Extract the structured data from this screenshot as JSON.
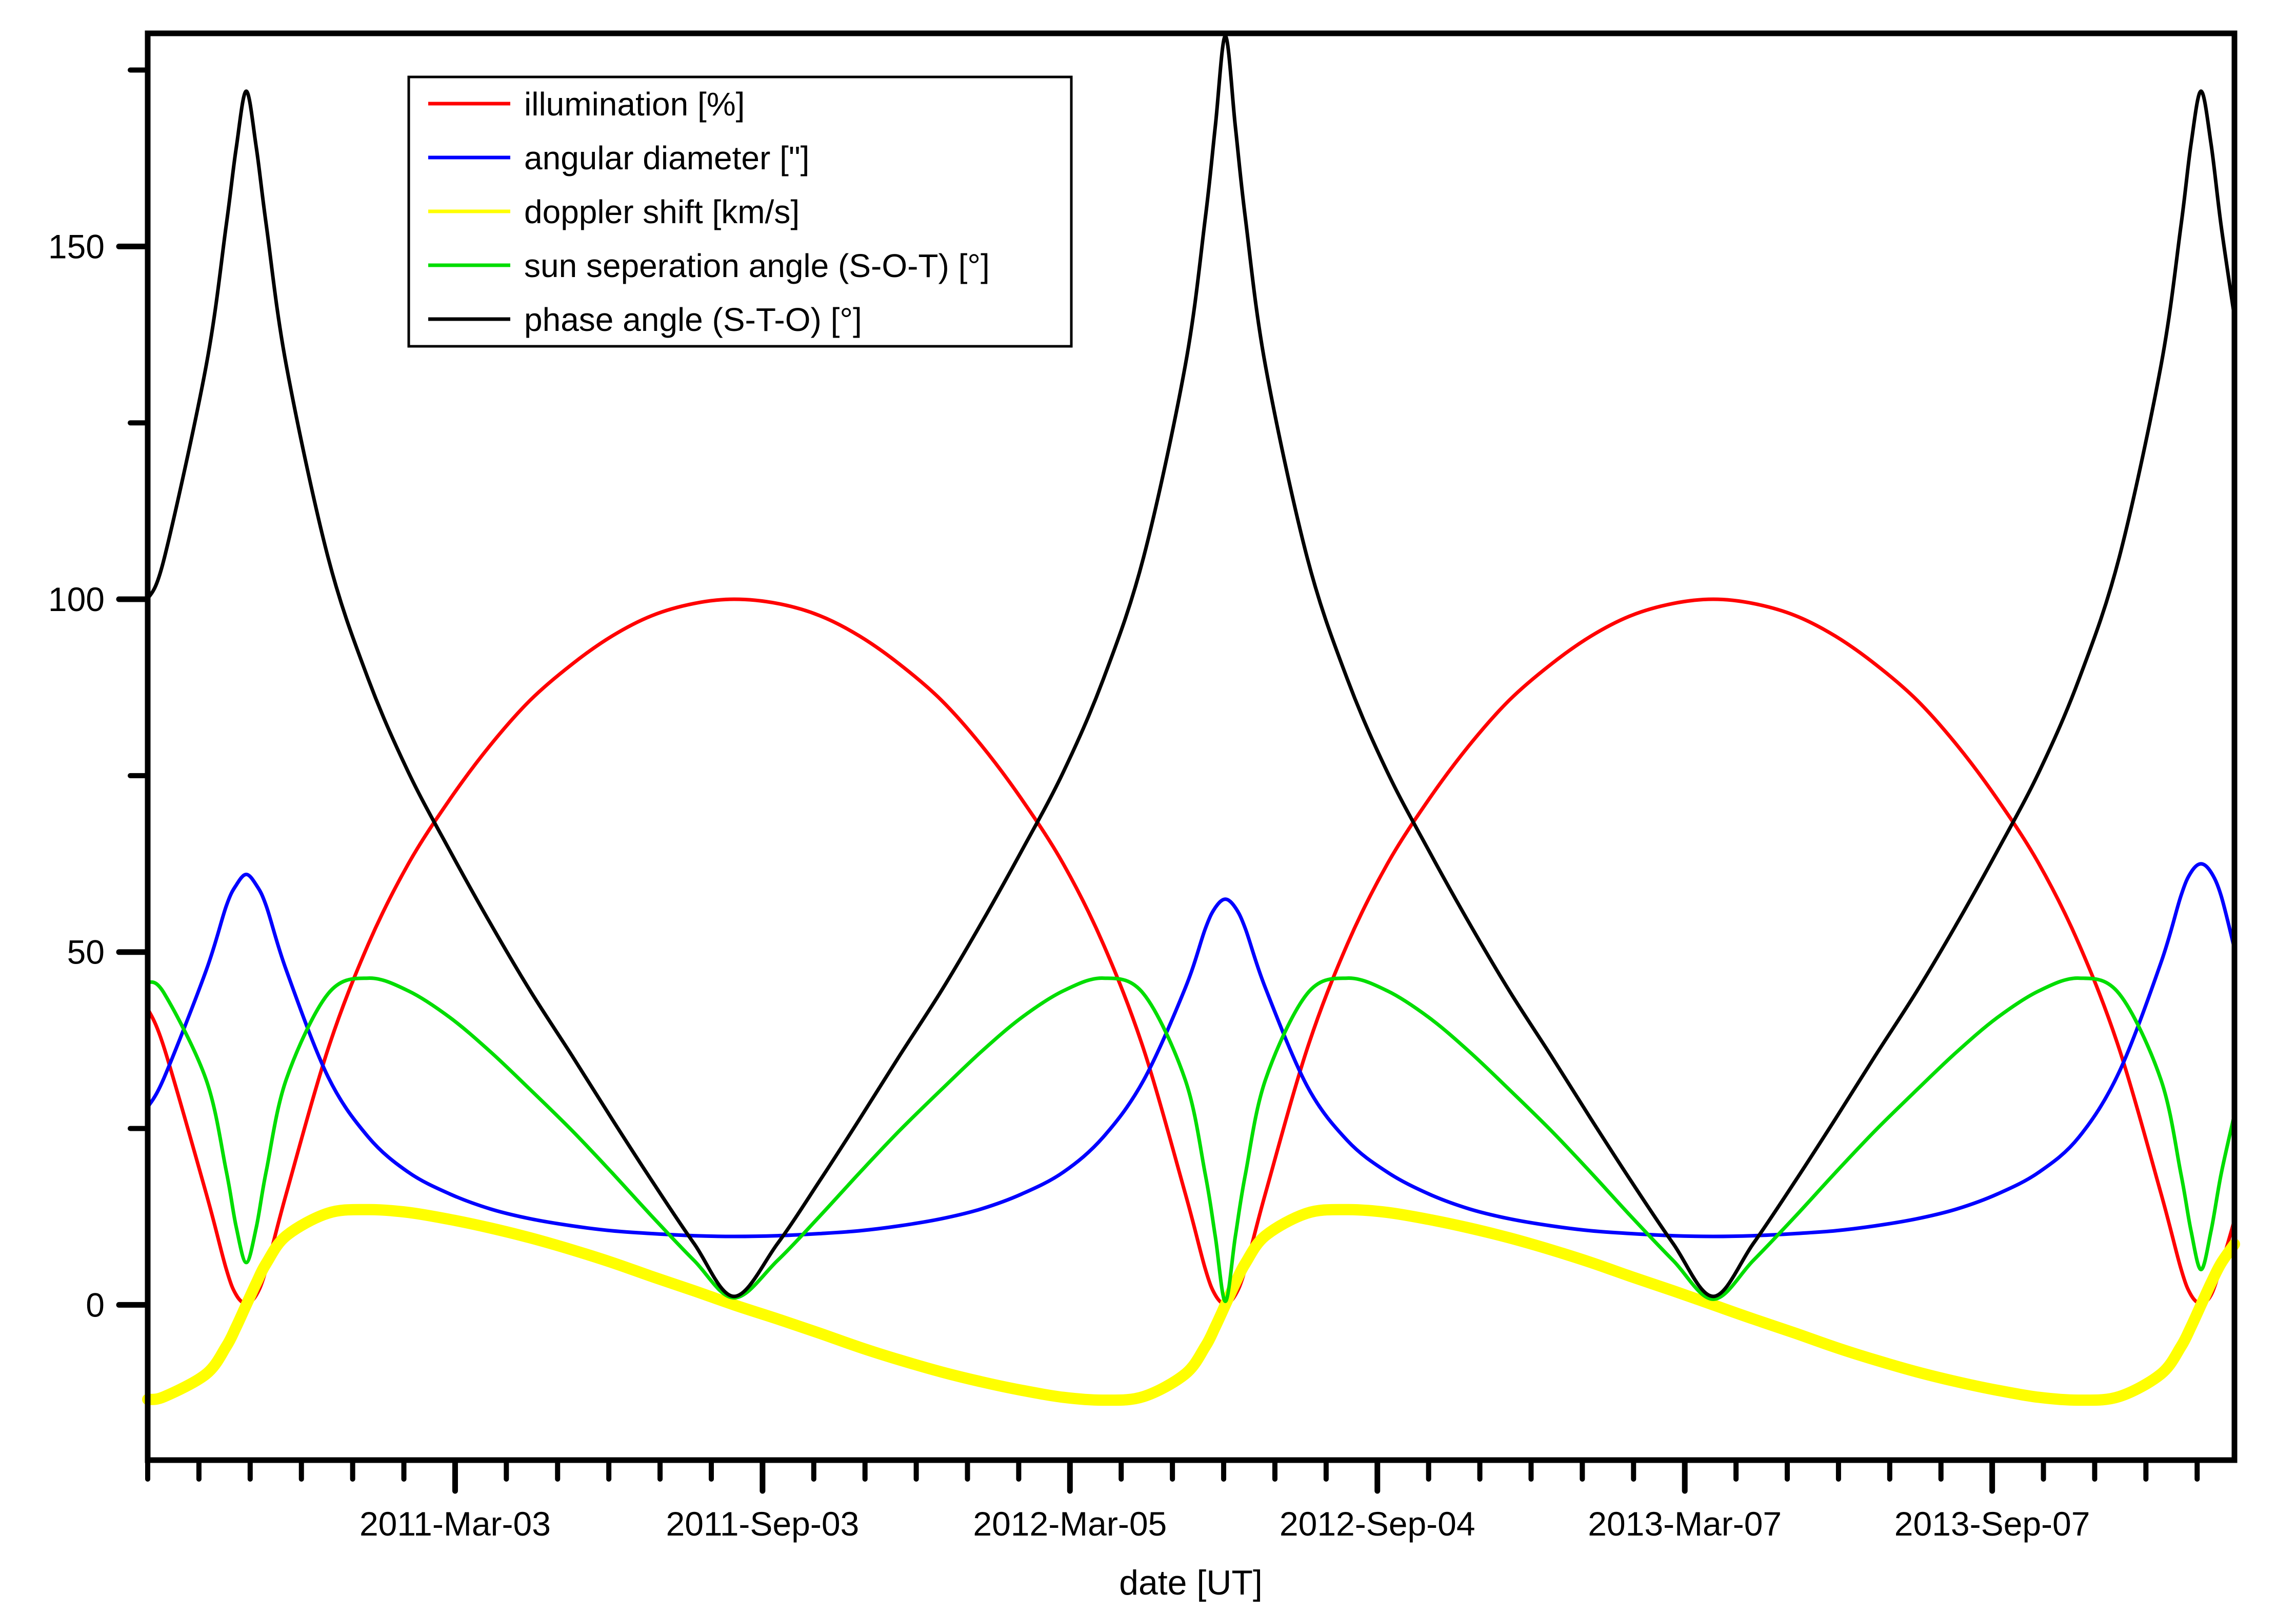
{
  "chart_data": {
    "type": "line",
    "title": "",
    "xlabel": "date [UT]",
    "legend_position": "top-left",
    "x_axis": {
      "range_days": [
        0,
        1249
      ],
      "major_ticks": [
        {
          "day": 184,
          "label": "2011-Mar-03"
        },
        {
          "day": 368,
          "label": "2011-Sep-03"
        },
        {
          "day": 552,
          "label": "2012-Mar-05"
        },
        {
          "day": 736,
          "label": "2012-Sep-04"
        },
        {
          "day": 920,
          "label": "2013-Mar-07"
        },
        {
          "day": 1104,
          "label": "2013-Sep-07"
        }
      ],
      "minor_tick_step_days": 30.6667,
      "minor_tick_count": 41
    },
    "y_axis": {
      "range": [
        -22,
        180.2
      ],
      "major_ticks": [
        {
          "value": 0,
          "label": "0"
        },
        {
          "value": 50,
          "label": "50"
        },
        {
          "value": 100,
          "label": "100"
        },
        {
          "value": 150,
          "label": "150"
        }
      ],
      "minor_ticks": [
        25,
        75,
        125,
        175
      ]
    },
    "days": [
      0,
      10,
      35,
      47,
      53,
      59,
      65,
      71,
      83,
      108,
      132,
      156,
      181,
      205,
      229,
      254,
      278,
      302,
      327,
      351,
      377,
      402,
      426,
      450,
      475,
      499,
      523,
      548,
      572,
      596,
      621,
      633,
      639,
      645,
      651,
      657,
      669,
      694,
      718,
      742,
      767,
      791,
      815,
      840,
      864,
      888,
      913,
      937,
      961,
      986,
      1010,
      1034,
      1059,
      1083,
      1107,
      1132,
      1156,
      1180,
      1205,
      1217,
      1223,
      1229,
      1235,
      1241,
      1249
    ],
    "series": [
      {
        "label": "illumination [%]",
        "color": "#ff0000",
        "width": 7,
        "values": [
          42,
          36.3,
          15.8,
          5.1,
          1.4,
          0.2,
          1.4,
          5.1,
          15.8,
          36.3,
          51.1,
          62.5,
          71.7,
          79.3,
          85.7,
          90.8,
          94.8,
          97.7,
          99.4,
          100,
          99.4,
          97.7,
          94.8,
          90.8,
          85.7,
          79.3,
          71.7,
          62.5,
          51.1,
          36.3,
          15.8,
          5.1,
          1.4,
          0.1,
          1.4,
          5.1,
          15.8,
          36.3,
          51.1,
          62.5,
          71.7,
          79.3,
          85.7,
          90.8,
          94.8,
          97.7,
          99.4,
          100,
          99.4,
          97.7,
          94.8,
          90.8,
          85.7,
          79.3,
          71.7,
          62.5,
          51.1,
          36.3,
          15.8,
          5.1,
          1.4,
          0.2,
          1.4,
          5.5,
          12
        ]
      },
      {
        "label": "angular diameter [\"]",
        "color": "#0000ff",
        "width": 7,
        "values": [
          28,
          32.3,
          47.4,
          56.5,
          59.5,
          61,
          59.5,
          56.5,
          47.4,
          32.3,
          23.8,
          18.8,
          15.7,
          13.6,
          12.2,
          11.2,
          10.5,
          10.1,
          9.8,
          9.7,
          9.8,
          10.1,
          10.5,
          11.2,
          12.2,
          13.6,
          15.7,
          18.8,
          23.8,
          31.8,
          44.9,
          53.3,
          56.3,
          57.5,
          56.3,
          53.3,
          44.9,
          31,
          23.3,
          18.8,
          15.7,
          13.6,
          12.2,
          11.2,
          10.5,
          10.1,
          9.8,
          9.7,
          9.8,
          10.1,
          10.5,
          11.2,
          12.2,
          13.6,
          15.7,
          18.8,
          23.8,
          33,
          48.5,
          58,
          61.3,
          62.5,
          61.3,
          58,
          50.5
        ]
      },
      {
        "label": "doppler shift [km/s]",
        "color": "#ffff00",
        "width": 22,
        "values": [
          -13.4,
          -13,
          -9.8,
          -5.9,
          -3.1,
          0,
          3.1,
          5.9,
          9.8,
          13,
          13.5,
          13.1,
          12.1,
          10.9,
          9.5,
          7.8,
          6,
          4,
          2,
          0,
          -2,
          -4,
          -6,
          -7.8,
          -9.5,
          -10.9,
          -12.1,
          -13.1,
          -13.5,
          -13,
          -9.8,
          -5.9,
          -3.1,
          0,
          3.1,
          5.9,
          9.8,
          13,
          13.5,
          13.1,
          12.1,
          10.9,
          9.5,
          7.8,
          6,
          4,
          2,
          0,
          -2,
          -4,
          -6,
          -7.8,
          -9.5,
          -10.9,
          -12.1,
          -13.1,
          -13.5,
          -13,
          -9.8,
          -5.9,
          -3.1,
          0,
          3.1,
          5.9,
          8.6
        ]
      },
      {
        "label": "sun seperation angle (S-O-T) [°]",
        "color": "#00dd00",
        "width": 7,
        "values": [
          45.8,
          44.1,
          31.9,
          19,
          11,
          6,
          11,
          19,
          32,
          44.1,
          46.3,
          44.5,
          40.7,
          35.9,
          30.5,
          24.7,
          18.7,
          12.5,
          6.3,
          1,
          6.3,
          12.5,
          18.7,
          24.7,
          30.5,
          35.9,
          40.7,
          44.5,
          46.3,
          44.1,
          31.9,
          18.5,
          9.7,
          0.5,
          9.7,
          18.5,
          31.9,
          44.1,
          46.3,
          44.5,
          40.7,
          35.9,
          30.5,
          24.7,
          18.7,
          12.5,
          6.3,
          0.8,
          6.3,
          12.5,
          18.7,
          24.7,
          30.5,
          35.9,
          40.7,
          44.5,
          46.3,
          44.1,
          31.9,
          18.5,
          10.5,
          5,
          10.5,
          18.5,
          27
        ]
      },
      {
        "label": "phase angle (S-T-O) [°]",
        "color": "#000000",
        "width": 7,
        "values": [
          100,
          105.9,
          133.1,
          153,
          164,
          172,
          164,
          153,
          133.1,
          105.9,
          88.7,
          75.5,
          64.3,
          54.1,
          44.5,
          35.3,
          26.3,
          17.5,
          8.7,
          1.2,
          8.7,
          17.5,
          26.3,
          35.3,
          44.5,
          54.1,
          64.3,
          75.5,
          88.7,
          105.9,
          133.1,
          154,
          167,
          179.8,
          167,
          154,
          133.1,
          105.9,
          88.7,
          75.5,
          64.3,
          54.1,
          44.5,
          35.3,
          26.3,
          17.5,
          8.7,
          1.2,
          8.7,
          17.5,
          26.3,
          35.3,
          44.5,
          54.1,
          64.3,
          75.5,
          88.7,
          105.9,
          133.1,
          153,
          164.5,
          172,
          164.5,
          153,
          140
        ]
      }
    ]
  }
}
